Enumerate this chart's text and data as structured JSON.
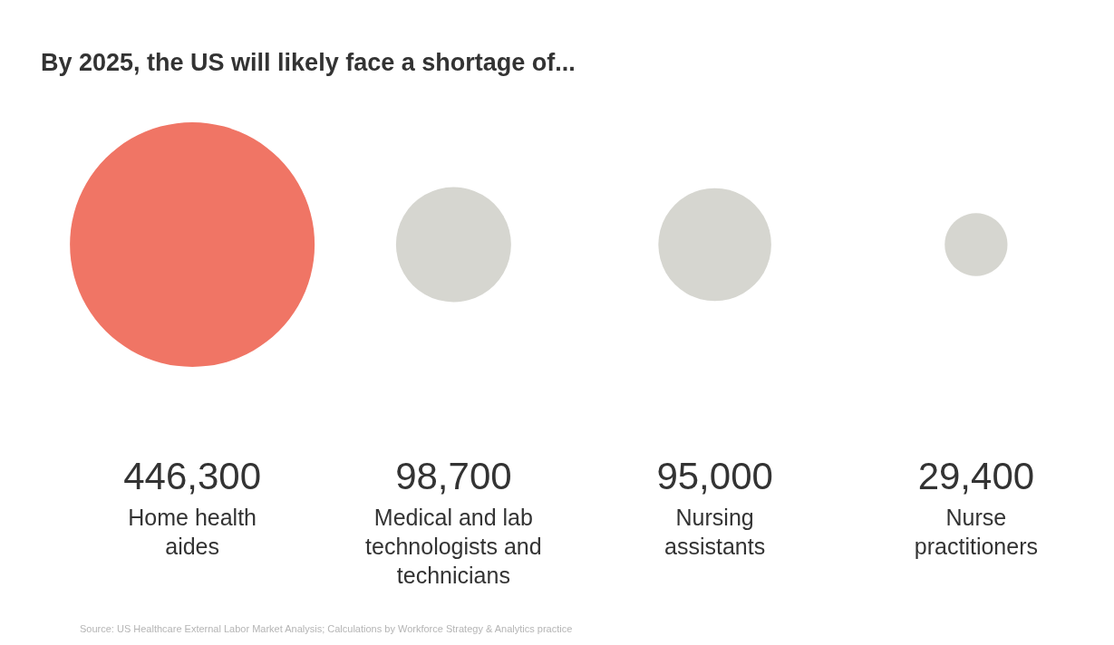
{
  "chart_data": {
    "type": "other",
    "title": "By 2025, the US will likely face a shortage of...",
    "categories": [
      "Home health\naides",
      "Medical and lab\ntechnologists and\ntechnicians",
      "Nursing\nassistants",
      "Nurse\npractitioners"
    ],
    "values": [
      446300,
      98700,
      95000,
      29400
    ],
    "value_labels": [
      "446,300",
      "98,700",
      "95,000",
      "29,400"
    ],
    "colors": [
      "#f07565",
      "#d6d6d0",
      "#d6d6d0",
      "#d6d6d0"
    ],
    "annotations": [
      "Source: US Healthcare External Labor Market Analysis; Calculations by Workforce Strategy & Analytics practice"
    ]
  }
}
